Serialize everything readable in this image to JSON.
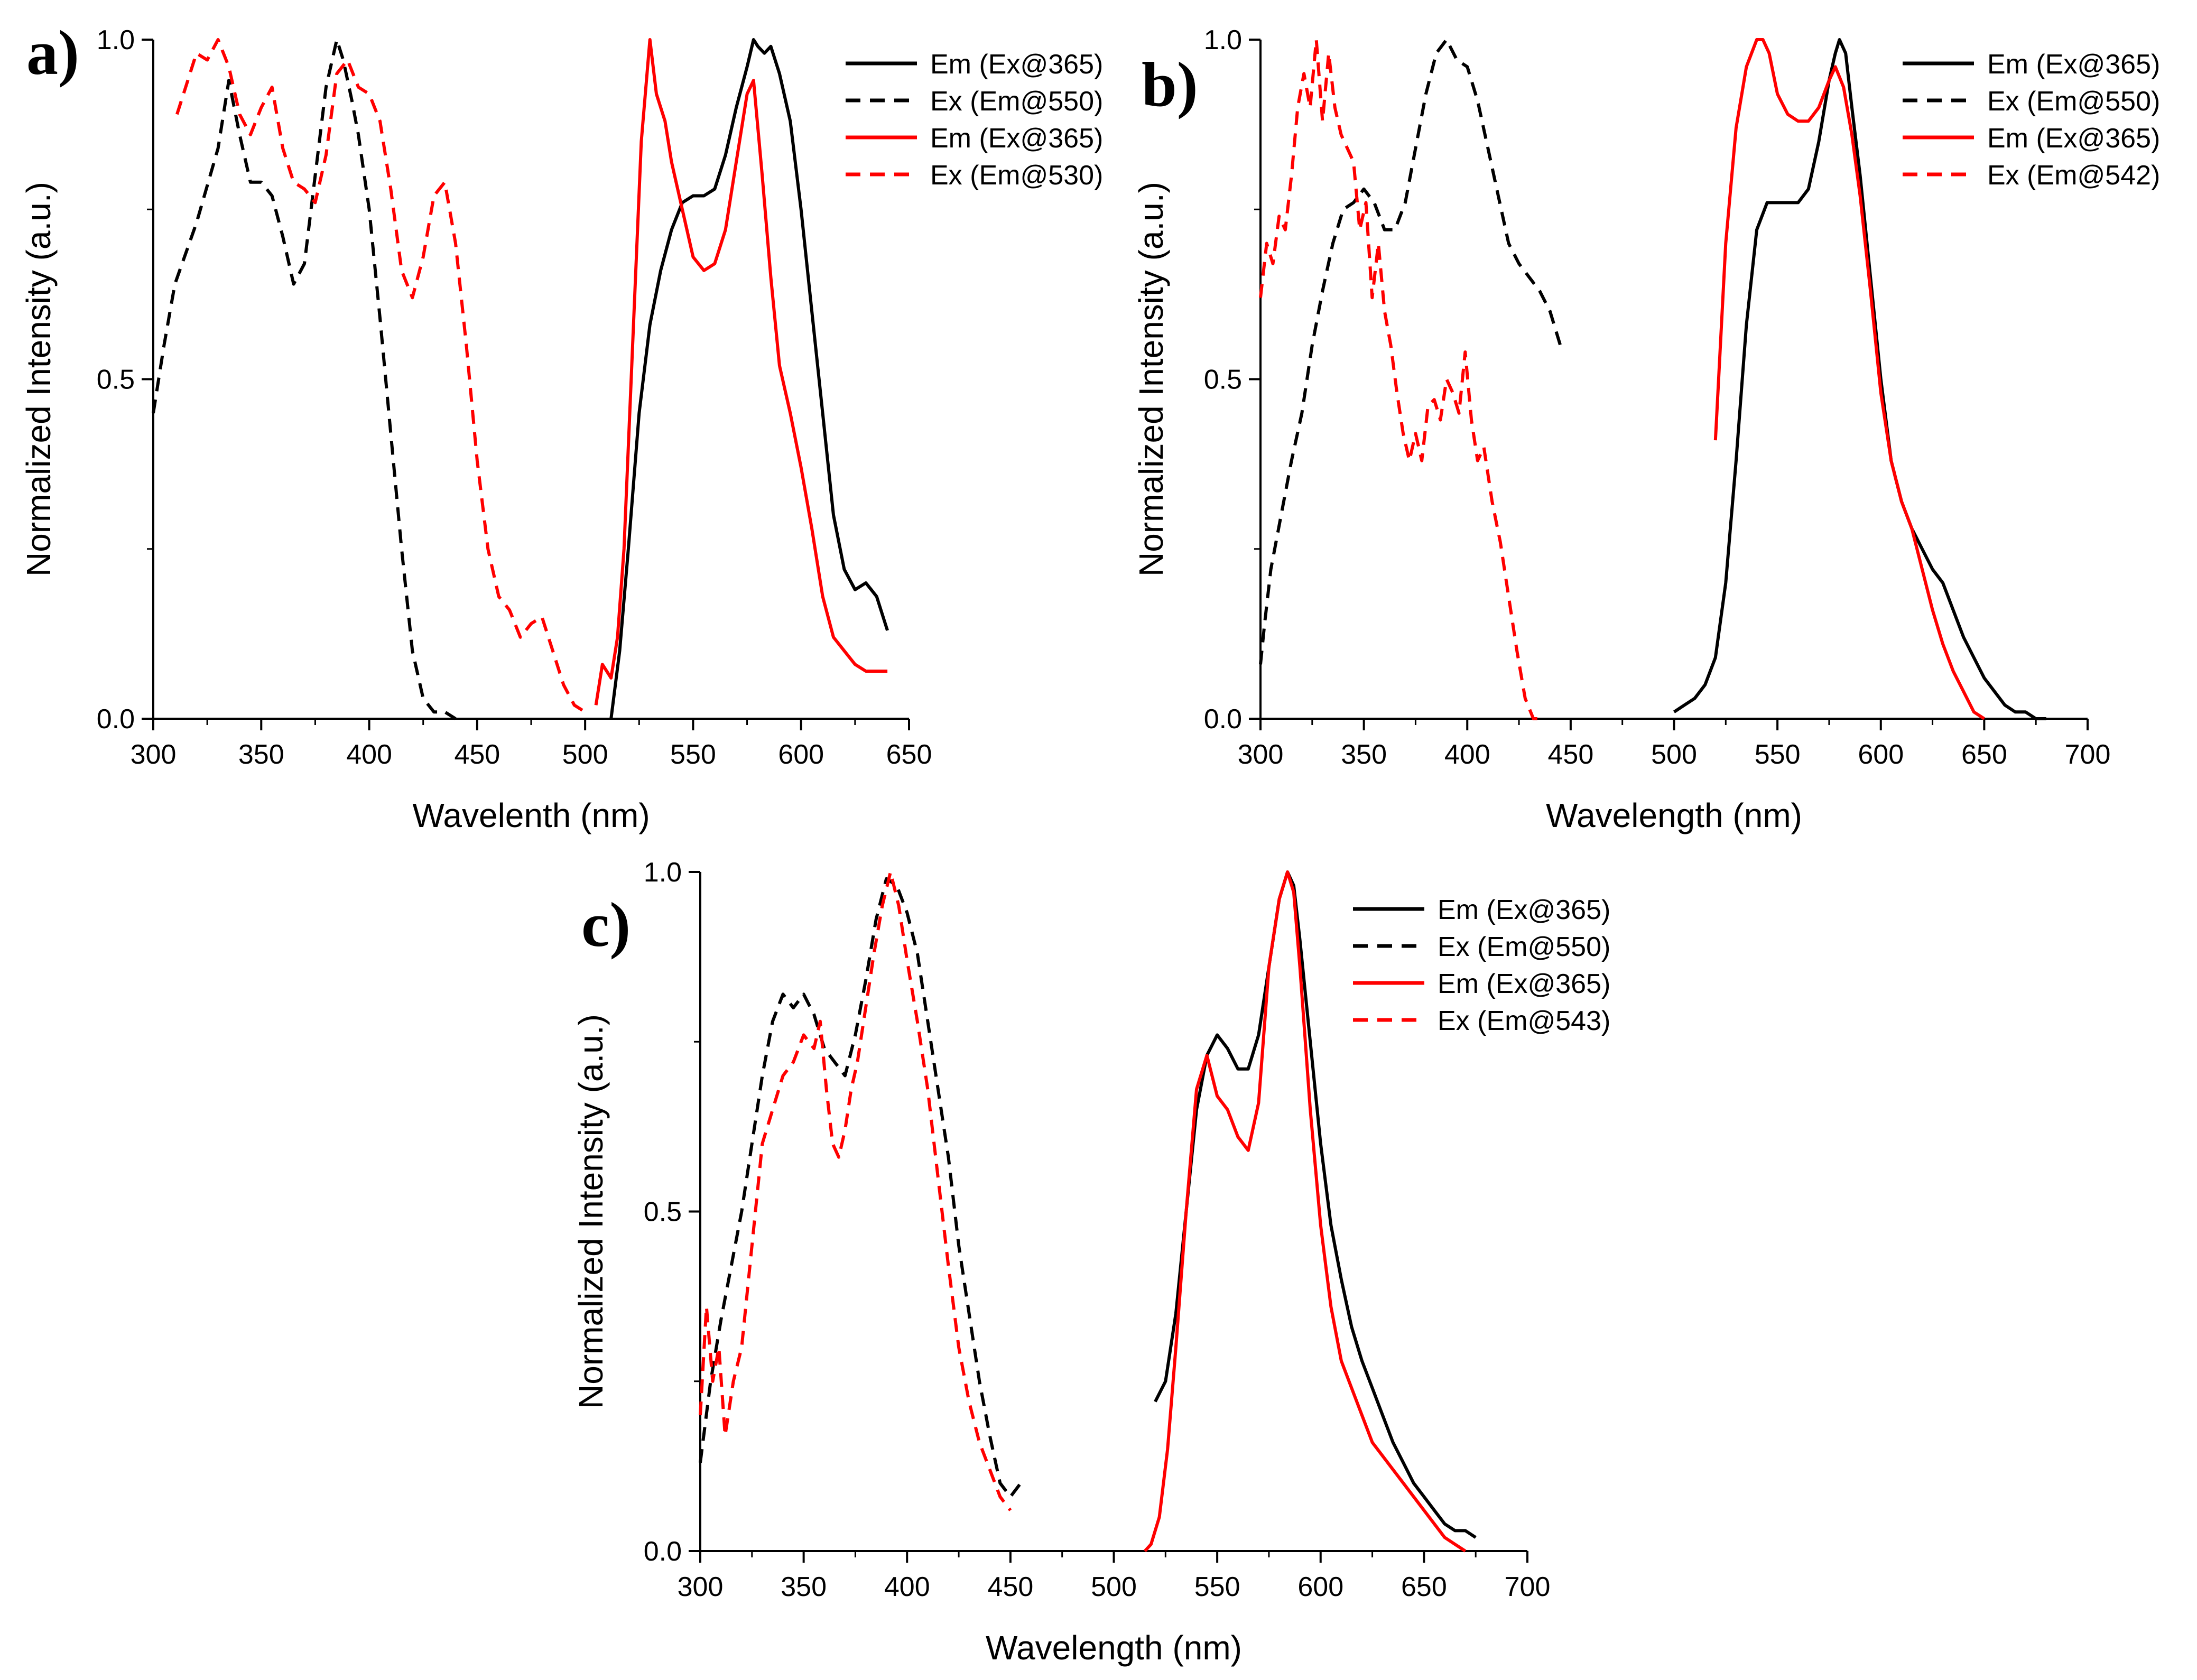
{
  "chart_data": [
    {
      "type": "line",
      "panel_label": "a)",
      "xlabel": "Wavelenth (nm)",
      "ylabel": "Normalized Intensity (a.u.)",
      "xlim": [
        300,
        650
      ],
      "ylim": [
        0,
        1.0
      ],
      "xticks": [
        "300",
        "350",
        "400",
        "450",
        "500",
        "550",
        "600",
        "650"
      ],
      "yticks": [
        "0.0",
        "0.5",
        "1.0"
      ],
      "legend_position": "top-right",
      "series": [
        {
          "name": "Em (Ex@365)",
          "color": "#000000",
          "dash": "solid",
          "x": [
            512,
            516,
            520,
            525,
            530,
            535,
            540,
            545,
            550,
            555,
            560,
            565,
            570,
            575,
            578,
            580,
            583,
            586,
            590,
            595,
            600,
            605,
            610,
            615,
            620,
            625,
            630,
            635,
            640
          ],
          "y": [
            0.0,
            0.1,
            0.25,
            0.45,
            0.58,
            0.66,
            0.72,
            0.76,
            0.77,
            0.77,
            0.78,
            0.83,
            0.9,
            0.96,
            1.0,
            0.99,
            0.98,
            0.99,
            0.95,
            0.88,
            0.75,
            0.6,
            0.45,
            0.3,
            0.22,
            0.19,
            0.2,
            0.18,
            0.13
          ]
        },
        {
          "name": "Ex (Em@550)",
          "color": "#000000",
          "dash": "dashed",
          "x": [
            300,
            305,
            310,
            320,
            330,
            335,
            340,
            345,
            350,
            355,
            360,
            365,
            370,
            375,
            380,
            385,
            388,
            392,
            395,
            400,
            405,
            410,
            415,
            420,
            425,
            430,
            435,
            440
          ],
          "y": [
            0.45,
            0.55,
            0.64,
            0.73,
            0.84,
            0.94,
            0.86,
            0.79,
            0.79,
            0.77,
            0.71,
            0.64,
            0.67,
            0.8,
            0.93,
            1.0,
            0.97,
            0.91,
            0.86,
            0.75,
            0.59,
            0.42,
            0.25,
            0.1,
            0.03,
            0.01,
            0.01,
            0.0
          ]
        },
        {
          "name": "Em (Ex@365)",
          "color": "#ff0000",
          "dash": "solid",
          "x": [
            505,
            508,
            512,
            515,
            518,
            522,
            526,
            530,
            533,
            537,
            540,
            545,
            550,
            555,
            560,
            565,
            570,
            575,
            578,
            582,
            586,
            590,
            595,
            600,
            605,
            610,
            615,
            620,
            625,
            630,
            635,
            640
          ],
          "y": [
            0.02,
            0.08,
            0.06,
            0.12,
            0.25,
            0.55,
            0.85,
            1.0,
            0.92,
            0.88,
            0.82,
            0.75,
            0.68,
            0.66,
            0.67,
            0.72,
            0.82,
            0.92,
            0.94,
            0.8,
            0.65,
            0.52,
            0.45,
            0.37,
            0.28,
            0.18,
            0.12,
            0.1,
            0.08,
            0.07,
            0.07,
            0.07
          ]
        },
        {
          "name": "Ex (Em@530)",
          "color": "#ff0000",
          "dash": "dashed",
          "x": [
            311,
            315,
            320,
            325,
            330,
            335,
            340,
            345,
            350,
            355,
            360,
            365,
            370,
            375,
            380,
            385,
            390,
            395,
            400,
            405,
            410,
            415,
            420,
            425,
            430,
            435,
            440,
            445,
            450,
            455,
            460,
            465,
            470,
            475,
            480,
            485,
            490,
            495,
            500
          ],
          "y": [
            0.89,
            0.93,
            0.98,
            0.97,
            1.0,
            0.96,
            0.89,
            0.86,
            0.9,
            0.93,
            0.84,
            0.79,
            0.78,
            0.76,
            0.83,
            0.95,
            0.97,
            0.93,
            0.92,
            0.88,
            0.78,
            0.66,
            0.62,
            0.68,
            0.77,
            0.79,
            0.7,
            0.55,
            0.38,
            0.25,
            0.18,
            0.16,
            0.12,
            0.14,
            0.15,
            0.1,
            0.05,
            0.02,
            0.01
          ]
        }
      ]
    },
    {
      "type": "line",
      "panel_label": "b)",
      "xlabel": "Wavelength (nm)",
      "ylabel": "Normalized Intensity (a.u.)",
      "xlim": [
        300,
        700
      ],
      "ylim": [
        0,
        1.0
      ],
      "xticks": [
        "300",
        "350",
        "400",
        "450",
        "500",
        "550",
        "600",
        "650",
        "700"
      ],
      "yticks": [
        "0.0",
        "0.5",
        "1.0"
      ],
      "legend_position": "top-right",
      "series": [
        {
          "name": "Em (Ex@365)",
          "color": "#000000",
          "dash": "solid",
          "x": [
            500,
            505,
            510,
            515,
            520,
            525,
            530,
            535,
            540,
            545,
            550,
            555,
            560,
            565,
            570,
            575,
            578,
            580,
            583,
            586,
            590,
            595,
            600,
            605,
            610,
            615,
            620,
            625,
            630,
            635,
            640,
            645,
            650,
            655,
            660,
            665,
            670,
            675,
            680
          ],
          "y": [
            0.01,
            0.02,
            0.03,
            0.05,
            0.09,
            0.2,
            0.38,
            0.58,
            0.72,
            0.76,
            0.76,
            0.76,
            0.76,
            0.78,
            0.85,
            0.94,
            0.98,
            1.0,
            0.98,
            0.9,
            0.8,
            0.65,
            0.5,
            0.38,
            0.32,
            0.28,
            0.25,
            0.22,
            0.2,
            0.16,
            0.12,
            0.09,
            0.06,
            0.04,
            0.02,
            0.01,
            0.01,
            0.0,
            0.0
          ]
        },
        {
          "name": "Ex (Em@550)",
          "color": "#000000",
          "dash": "dashed",
          "x": [
            300,
            302,
            305,
            310,
            315,
            320,
            325,
            330,
            335,
            340,
            345,
            350,
            355,
            360,
            365,
            370,
            375,
            380,
            385,
            390,
            395,
            400,
            405,
            410,
            415,
            420,
            425,
            430,
            435,
            440,
            445
          ],
          "y": [
            0.08,
            0.14,
            0.22,
            0.3,
            0.38,
            0.45,
            0.55,
            0.63,
            0.7,
            0.75,
            0.76,
            0.78,
            0.76,
            0.72,
            0.72,
            0.76,
            0.84,
            0.92,
            0.98,
            1.0,
            0.97,
            0.96,
            0.91,
            0.84,
            0.77,
            0.7,
            0.67,
            0.65,
            0.63,
            0.6,
            0.55
          ]
        },
        {
          "name": "Em (Ex@365)",
          "color": "#ff0000",
          "dash": "solid",
          "x": [
            520,
            525,
            530,
            535,
            540,
            543,
            546,
            550,
            555,
            560,
            565,
            570,
            575,
            578,
            582,
            586,
            590,
            595,
            600,
            605,
            610,
            615,
            620,
            625,
            630,
            635,
            640,
            645,
            650
          ],
          "y": [
            0.41,
            0.7,
            0.87,
            0.96,
            1.0,
            1.0,
            0.98,
            0.92,
            0.89,
            0.88,
            0.88,
            0.9,
            0.94,
            0.96,
            0.93,
            0.86,
            0.77,
            0.63,
            0.48,
            0.38,
            0.32,
            0.28,
            0.22,
            0.16,
            0.11,
            0.07,
            0.04,
            0.01,
            0.0
          ]
        },
        {
          "name": "Ex (Em@542)",
          "color": "#ff0000",
          "dash": "dashed",
          "x": [
            300,
            303,
            306,
            309,
            312,
            315,
            318,
            321,
            324,
            327,
            330,
            333,
            336,
            339,
            342,
            345,
            348,
            351,
            354,
            357,
            360,
            363,
            366,
            369,
            372,
            375,
            378,
            381,
            384,
            387,
            390,
            393,
            396,
            399,
            402,
            405,
            408,
            412,
            416,
            420,
            424,
            428,
            432,
            436
          ],
          "y": [
            0.62,
            0.7,
            0.67,
            0.74,
            0.72,
            0.8,
            0.9,
            0.95,
            0.9,
            1.0,
            0.88,
            0.98,
            0.9,
            0.86,
            0.84,
            0.82,
            0.72,
            0.76,
            0.62,
            0.7,
            0.6,
            0.55,
            0.48,
            0.42,
            0.38,
            0.42,
            0.38,
            0.46,
            0.47,
            0.44,
            0.5,
            0.48,
            0.45,
            0.54,
            0.44,
            0.38,
            0.4,
            0.32,
            0.26,
            0.18,
            0.1,
            0.03,
            0.0,
            0.0
          ]
        }
      ]
    },
    {
      "type": "line",
      "panel_label": "c)",
      "xlabel": "Wavelength (nm)",
      "ylabel": "Normalized Intensity (a.u.)",
      "xlim": [
        300,
        700
      ],
      "ylim": [
        0,
        1.0
      ],
      "xticks": [
        "300",
        "350",
        "400",
        "450",
        "500",
        "550",
        "600",
        "650",
        "700"
      ],
      "yticks": [
        "0.0",
        "0.5",
        "1.0"
      ],
      "legend_position": "top-right",
      "series": [
        {
          "name": "Em (Ex@365)",
          "color": "#000000",
          "dash": "solid",
          "x": [
            520,
            525,
            530,
            535,
            540,
            545,
            550,
            555,
            560,
            565,
            570,
            575,
            580,
            584,
            587,
            590,
            595,
            600,
            605,
            610,
            615,
            620,
            625,
            630,
            635,
            640,
            645,
            650,
            655,
            660,
            665,
            670,
            675
          ],
          "y": [
            0.22,
            0.25,
            0.35,
            0.5,
            0.65,
            0.73,
            0.76,
            0.74,
            0.71,
            0.71,
            0.76,
            0.86,
            0.96,
            1.0,
            0.98,
            0.9,
            0.75,
            0.6,
            0.48,
            0.4,
            0.33,
            0.28,
            0.24,
            0.2,
            0.16,
            0.13,
            0.1,
            0.08,
            0.06,
            0.04,
            0.03,
            0.03,
            0.02
          ]
        },
        {
          "name": "Ex (Em@550)",
          "color": "#000000",
          "dash": "dashed",
          "x": [
            300,
            305,
            310,
            315,
            320,
            325,
            330,
            335,
            340,
            345,
            350,
            355,
            360,
            365,
            370,
            375,
            380,
            385,
            390,
            395,
            400,
            405,
            410,
            415,
            420,
            425,
            430,
            435,
            440,
            445,
            450,
            455
          ],
          "y": [
            0.13,
            0.25,
            0.34,
            0.42,
            0.5,
            0.6,
            0.7,
            0.78,
            0.82,
            0.8,
            0.82,
            0.79,
            0.74,
            0.72,
            0.7,
            0.76,
            0.84,
            0.93,
            0.99,
            0.98,
            0.94,
            0.88,
            0.78,
            0.68,
            0.58,
            0.45,
            0.35,
            0.25,
            0.17,
            0.1,
            0.08,
            0.1
          ]
        },
        {
          "name": "Em (Ex@365)",
          "color": "#ff0000",
          "dash": "solid",
          "x": [
            515,
            518,
            522,
            526,
            530,
            535,
            540,
            545,
            550,
            555,
            560,
            565,
            570,
            575,
            580,
            584,
            587,
            590,
            595,
            600,
            605,
            610,
            615,
            620,
            625,
            630,
            635,
            640,
            645,
            650,
            655,
            660,
            665,
            670
          ],
          "y": [
            0.0,
            0.01,
            0.05,
            0.15,
            0.3,
            0.5,
            0.68,
            0.73,
            0.67,
            0.65,
            0.61,
            0.59,
            0.66,
            0.86,
            0.96,
            1.0,
            0.97,
            0.86,
            0.65,
            0.48,
            0.36,
            0.28,
            0.24,
            0.2,
            0.16,
            0.14,
            0.12,
            0.1,
            0.08,
            0.06,
            0.04,
            0.02,
            0.01,
            0.0
          ]
        },
        {
          "name": "Ex (Em@543)",
          "color": "#ff0000",
          "dash": "dashed",
          "x": [
            300,
            303,
            306,
            309,
            312,
            316,
            320,
            325,
            330,
            335,
            340,
            345,
            350,
            355,
            358,
            361,
            364,
            367,
            370,
            373,
            376,
            380,
            384,
            388,
            392,
            396,
            400,
            405,
            410,
            415,
            420,
            425,
            430,
            435,
            440,
            445,
            450
          ],
          "y": [
            0.2,
            0.36,
            0.25,
            0.3,
            0.17,
            0.25,
            0.3,
            0.45,
            0.6,
            0.65,
            0.7,
            0.72,
            0.76,
            0.74,
            0.78,
            0.68,
            0.6,
            0.58,
            0.62,
            0.68,
            0.72,
            0.8,
            0.88,
            0.95,
            1.0,
            0.95,
            0.87,
            0.78,
            0.68,
            0.55,
            0.42,
            0.3,
            0.22,
            0.16,
            0.12,
            0.08,
            0.06
          ]
        }
      ]
    }
  ]
}
